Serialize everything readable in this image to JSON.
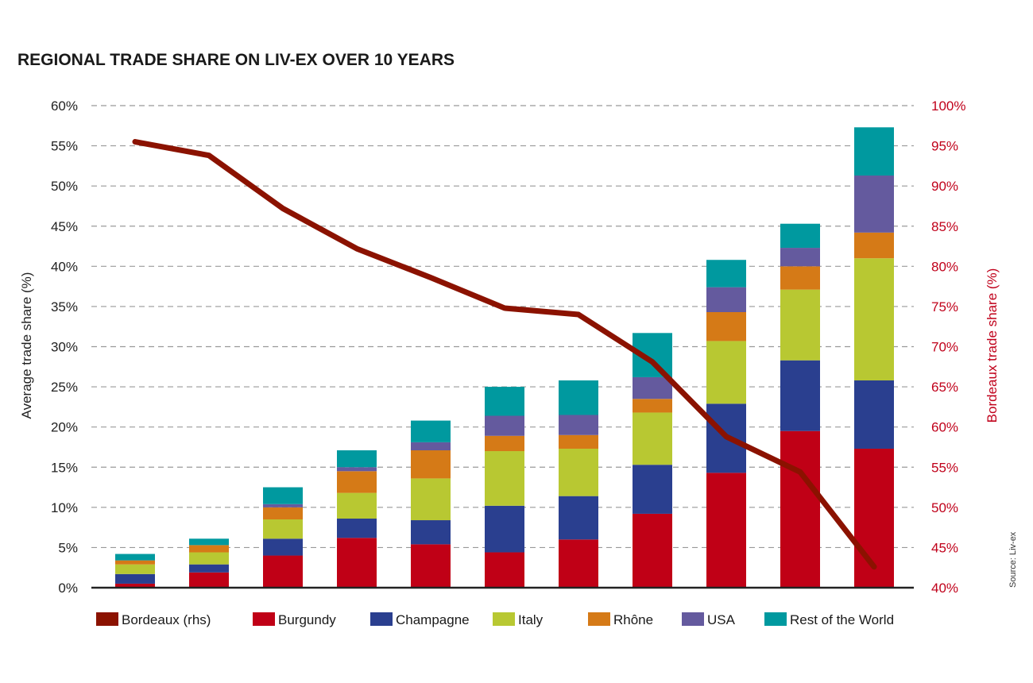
{
  "chart_data": {
    "type": "bar",
    "stacked": true,
    "title": "REGIONAL TRADE SHARE ON LIV-EX OVER 10 YEARS",
    "xlabel": "",
    "ylabel": "Average trade share (%)",
    "y2label": "Bordeaux trade share (%)",
    "ylim": [
      0,
      60
    ],
    "y2lim": [
      40,
      100
    ],
    "yticks": [
      "0%",
      "5%",
      "10%",
      "15%",
      "20%",
      "25%",
      "30%",
      "35%",
      "40%",
      "45%",
      "50%",
      "55%",
      "60%"
    ],
    "y2ticks": [
      "40%",
      "45%",
      "50%",
      "55%",
      "60%",
      "65%",
      "70%",
      "75%",
      "80%",
      "85%",
      "90%",
      "95%",
      "100%"
    ],
    "grid": true,
    "legend_position": "bottom",
    "source": "Source: Liv-ex",
    "x": [
      1,
      2,
      3,
      4,
      5,
      6,
      7,
      8,
      9,
      10,
      11
    ],
    "series": [
      {
        "name": "Burgundy",
        "color": "#c00016",
        "values": [
          0.5,
          1.9,
          4.0,
          6.2,
          5.4,
          4.4,
          6.0,
          9.2,
          14.3,
          19.5,
          17.3
        ]
      },
      {
        "name": "Champagne",
        "color": "#2a3f8f",
        "values": [
          1.2,
          1.0,
          2.1,
          2.4,
          3.0,
          5.8,
          5.4,
          6.1,
          8.6,
          8.8,
          8.5
        ]
      },
      {
        "name": "Italy",
        "color": "#b8c832",
        "values": [
          1.2,
          1.5,
          2.4,
          3.2,
          5.2,
          6.8,
          5.9,
          6.5,
          7.8,
          8.8,
          15.2
        ]
      },
      {
        "name": "Rhône",
        "color": "#d57a17",
        "values": [
          0.5,
          0.9,
          1.5,
          2.7,
          3.5,
          1.9,
          1.7,
          1.7,
          3.6,
          2.9,
          3.2
        ]
      },
      {
        "name": "USA",
        "color": "#645a9e",
        "values": [
          0,
          0,
          0.4,
          0.5,
          1.0,
          2.5,
          2.5,
          2.7,
          3.1,
          2.3,
          7.1
        ]
      },
      {
        "name": "Rest of the World",
        "color": "#00999f",
        "values": [
          0.8,
          0.8,
          2.1,
          2.1,
          2.7,
          3.6,
          4.3,
          5.5,
          3.4,
          3.0,
          6.0
        ]
      }
    ],
    "line_series": {
      "name": "Bordeaux (rhs)",
      "color": "#8b1200",
      "axis": "right",
      "values": [
        95.5,
        93.8,
        87.2,
        82.2,
        78.6,
        74.8,
        74.0,
        68.1,
        58.8,
        54.4,
        42.6
      ]
    }
  }
}
